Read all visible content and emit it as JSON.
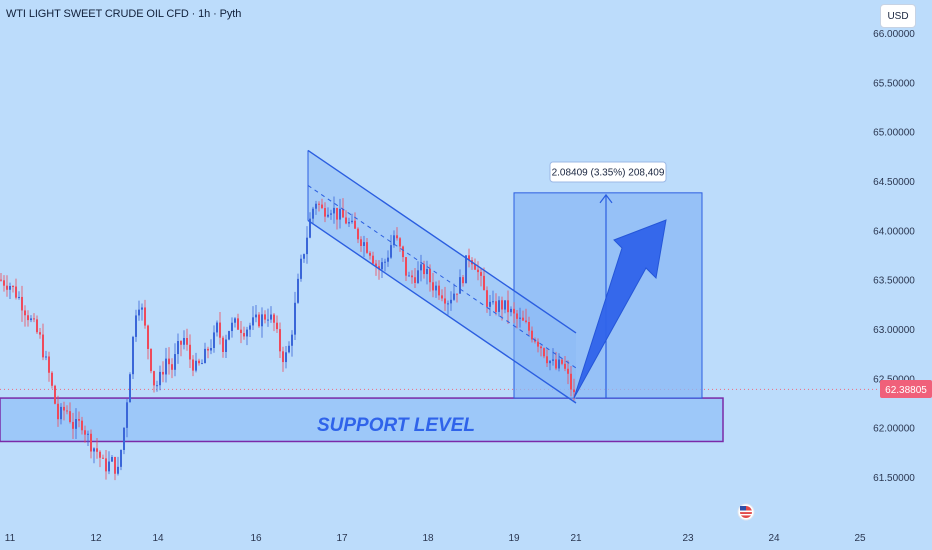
{
  "header": {
    "title": "WTI LIGHT SWEET CRUDE OIL CFD · 1h · Pyth",
    "currency_button": "USD"
  },
  "annotations": {
    "support_label": "SUPPORT LEVEL",
    "measure_label": "2.08409 (3.35%) 208,409",
    "current_price_label": "62.38805"
  },
  "colors": {
    "background": "#bcdcfb",
    "bull": "#3a66d8",
    "bear": "#ef4a5b",
    "channel": "#2b5ee0",
    "arrow": "#2f63ea",
    "support_border": "#7a2aa8",
    "price_tag": "#f0607a"
  },
  "chart_data": {
    "type": "candlestick",
    "title": "WTI LIGHT SWEET CRUDE OIL CFD · 1h · Pyth",
    "ylim": [
      61.2,
      66.1
    ],
    "y_ticks": [
      "66.00000",
      "65.50000",
      "65.00000",
      "64.50000",
      "64.00000",
      "63.50000",
      "63.00000",
      "62.50000",
      "62.00000",
      "61.50000"
    ],
    "y_tick_values": [
      66.0,
      65.5,
      65.0,
      64.5,
      64.0,
      63.5,
      63.0,
      62.5,
      62.0,
      61.5
    ],
    "x_ticks": [
      "11",
      "12",
      "14",
      "16",
      "17",
      "18",
      "19",
      "21",
      "23",
      "24",
      "25"
    ],
    "current_price": 62.38805,
    "support_zone": [
      61.86,
      62.3
    ],
    "channel": {
      "upper": [
        [
          64.81,
          62.96
        ]
      ],
      "lower": [
        [
          64.1,
          62.25
        ]
      ]
    },
    "measure": {
      "from": 62.3,
      "to": 64.38,
      "change": 2.08409,
      "percent": 3.35,
      "ticks": 208409
    },
    "close_path": [
      [
        0,
        63.5
      ],
      [
        10,
        63.45
      ],
      [
        20,
        63.3
      ],
      [
        30,
        63.1
      ],
      [
        40,
        62.9
      ],
      [
        50,
        62.5
      ],
      [
        58,
        62.1
      ],
      [
        66,
        62.2
      ],
      [
        74,
        62.0
      ],
      [
        82,
        62.05
      ],
      [
        90,
        61.85
      ],
      [
        98,
        61.75
      ],
      [
        104,
        61.6
      ],
      [
        112,
        61.65
      ],
      [
        118,
        61.55
      ],
      [
        124,
        62.0
      ],
      [
        128,
        62.4
      ],
      [
        132,
        62.8
      ],
      [
        136,
        63.2
      ],
      [
        140,
        63.3
      ],
      [
        145,
        63.0
      ],
      [
        150,
        62.7
      ],
      [
        155,
        62.4
      ],
      [
        160,
        62.5
      ],
      [
        166,
        62.7
      ],
      [
        172,
        62.6
      ],
      [
        178,
        62.8
      ],
      [
        184,
        62.9
      ],
      [
        190,
        62.7
      ],
      [
        196,
        62.6
      ],
      [
        202,
        62.65
      ],
      [
        208,
        62.8
      ],
      [
        214,
        62.9
      ],
      [
        218,
        63.05
      ],
      [
        222,
        62.8
      ],
      [
        228,
        63.0
      ],
      [
        236,
        63.05
      ],
      [
        244,
        63.0
      ],
      [
        252,
        63.05
      ],
      [
        260,
        63.1
      ],
      [
        268,
        63.15
      ],
      [
        274,
        63.05
      ],
      [
        280,
        62.8
      ],
      [
        284,
        62.7
      ],
      [
        288,
        62.75
      ],
      [
        292,
        63.0
      ],
      [
        296,
        63.3
      ],
      [
        300,
        63.6
      ],
      [
        304,
        63.8
      ],
      [
        308,
        64.0
      ],
      [
        312,
        64.2
      ],
      [
        316,
        64.3
      ],
      [
        322,
        64.2
      ],
      [
        330,
        64.25
      ],
      [
        338,
        64.15
      ],
      [
        346,
        64.1
      ],
      [
        354,
        64.0
      ],
      [
        362,
        63.9
      ],
      [
        370,
        63.8
      ],
      [
        378,
        63.6
      ],
      [
        386,
        63.7
      ],
      [
        394,
        63.95
      ],
      [
        400,
        63.8
      ],
      [
        408,
        63.5
      ],
      [
        416,
        63.55
      ],
      [
        424,
        63.6
      ],
      [
        432,
        63.45
      ],
      [
        440,
        63.4
      ],
      [
        448,
        63.3
      ],
      [
        456,
        63.4
      ],
      [
        462,
        63.5
      ],
      [
        468,
        63.75
      ],
      [
        474,
        63.7
      ],
      [
        480,
        63.5
      ],
      [
        486,
        63.3
      ],
      [
        492,
        63.2
      ],
      [
        500,
        63.25
      ],
      [
        508,
        63.2
      ],
      [
        516,
        63.1
      ],
      [
        524,
        63.05
      ],
      [
        532,
        62.95
      ],
      [
        540,
        62.85
      ],
      [
        548,
        62.7
      ],
      [
        556,
        62.6
      ],
      [
        562,
        62.65
      ],
      [
        568,
        62.5
      ],
      [
        574,
        62.32
      ]
    ]
  }
}
